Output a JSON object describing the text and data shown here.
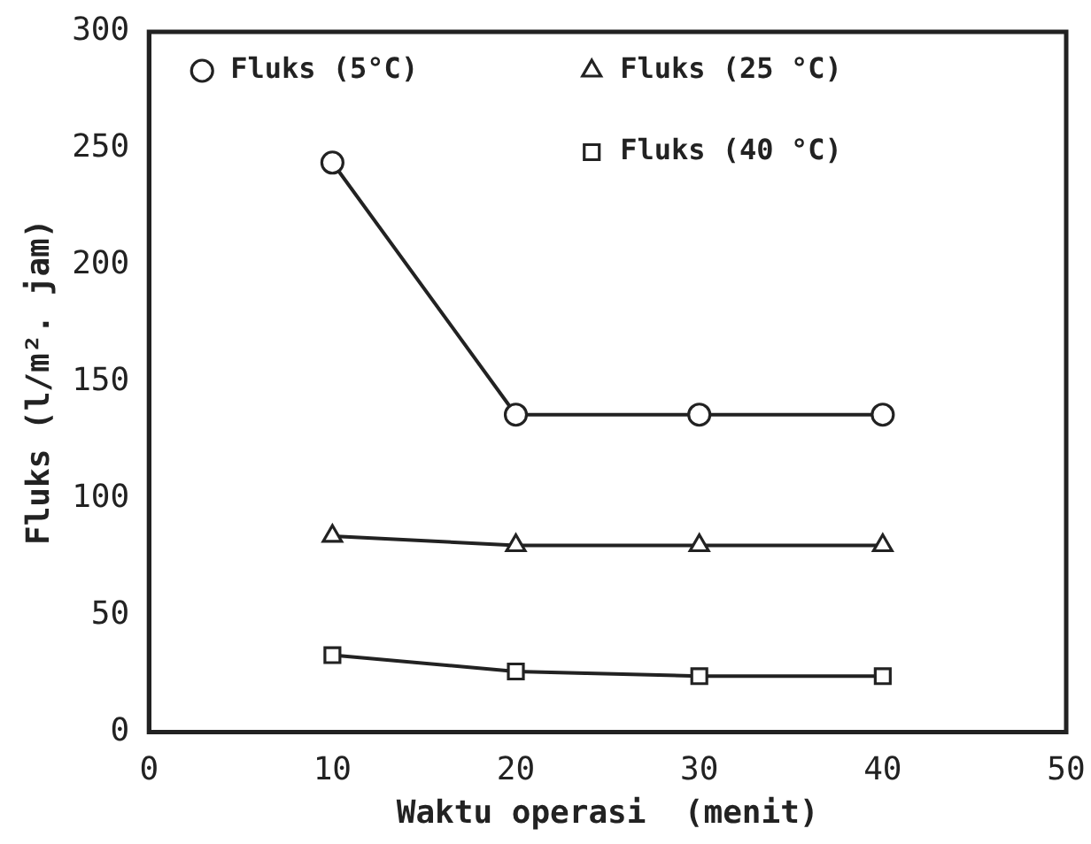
{
  "chart_data": {
    "type": "line",
    "xlabel": "Waktu operasi  (menit)",
    "ylabel": "Fluks (l/m². jam)",
    "x": [
      10,
      20,
      30,
      40
    ],
    "series": [
      {
        "name": "Fluks (5°C)",
        "color": "#222222",
        "marker": "circle",
        "values": [
          244,
          136,
          136,
          136
        ]
      },
      {
        "name": "Fluks (25 °C)",
        "color": "#222222",
        "marker": "triangle",
        "values": [
          84,
          80,
          80,
          80
        ]
      },
      {
        "name": "Fluks (40 °C)",
        "color": "#222222",
        "marker": "square",
        "values": [
          33,
          26,
          24,
          24
        ]
      }
    ],
    "xlim": [
      0,
      50
    ],
    "xticks": [
      0,
      10,
      20,
      30,
      40,
      50
    ],
    "ylim": [
      0,
      300
    ],
    "yticks": [
      0,
      50,
      100,
      150,
      200,
      250,
      300
    ],
    "grid": false,
    "legend": "top",
    "line_style": "solid"
  }
}
